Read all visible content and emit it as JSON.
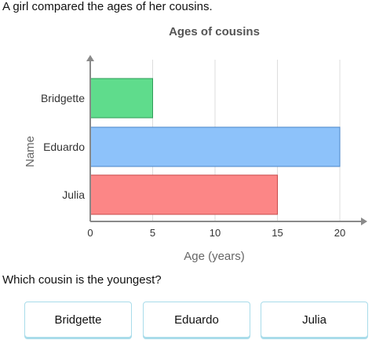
{
  "intro_text": "A girl compared the ages of her cousins.",
  "question_text": "Which cousin is the youngest?",
  "answers": [
    "Bridgette",
    "Eduardo",
    "Julia"
  ],
  "colors": {
    "bridgette_fill": "#5fdc8c",
    "bridgette_stroke": "#2f9c57",
    "eduardo_fill": "#8dc2fa",
    "eduardo_stroke": "#4a86c8",
    "julia_fill": "#fc8686",
    "julia_stroke": "#c84a4a",
    "axis": "#8a8a8a",
    "grid": "#dddddd",
    "button_border": "#a9dcea"
  },
  "chart_data": {
    "type": "bar",
    "orientation": "horizontal",
    "title": "Ages of cousins",
    "xlabel": "Age (years)",
    "ylabel": "Name",
    "categories": [
      "Bridgette",
      "Eduardo",
      "Julia"
    ],
    "values": [
      5,
      20,
      15
    ],
    "xlim": [
      0,
      22
    ],
    "xticks": [
      0,
      5,
      10,
      15,
      20
    ],
    "grid": true,
    "legend": "none"
  }
}
